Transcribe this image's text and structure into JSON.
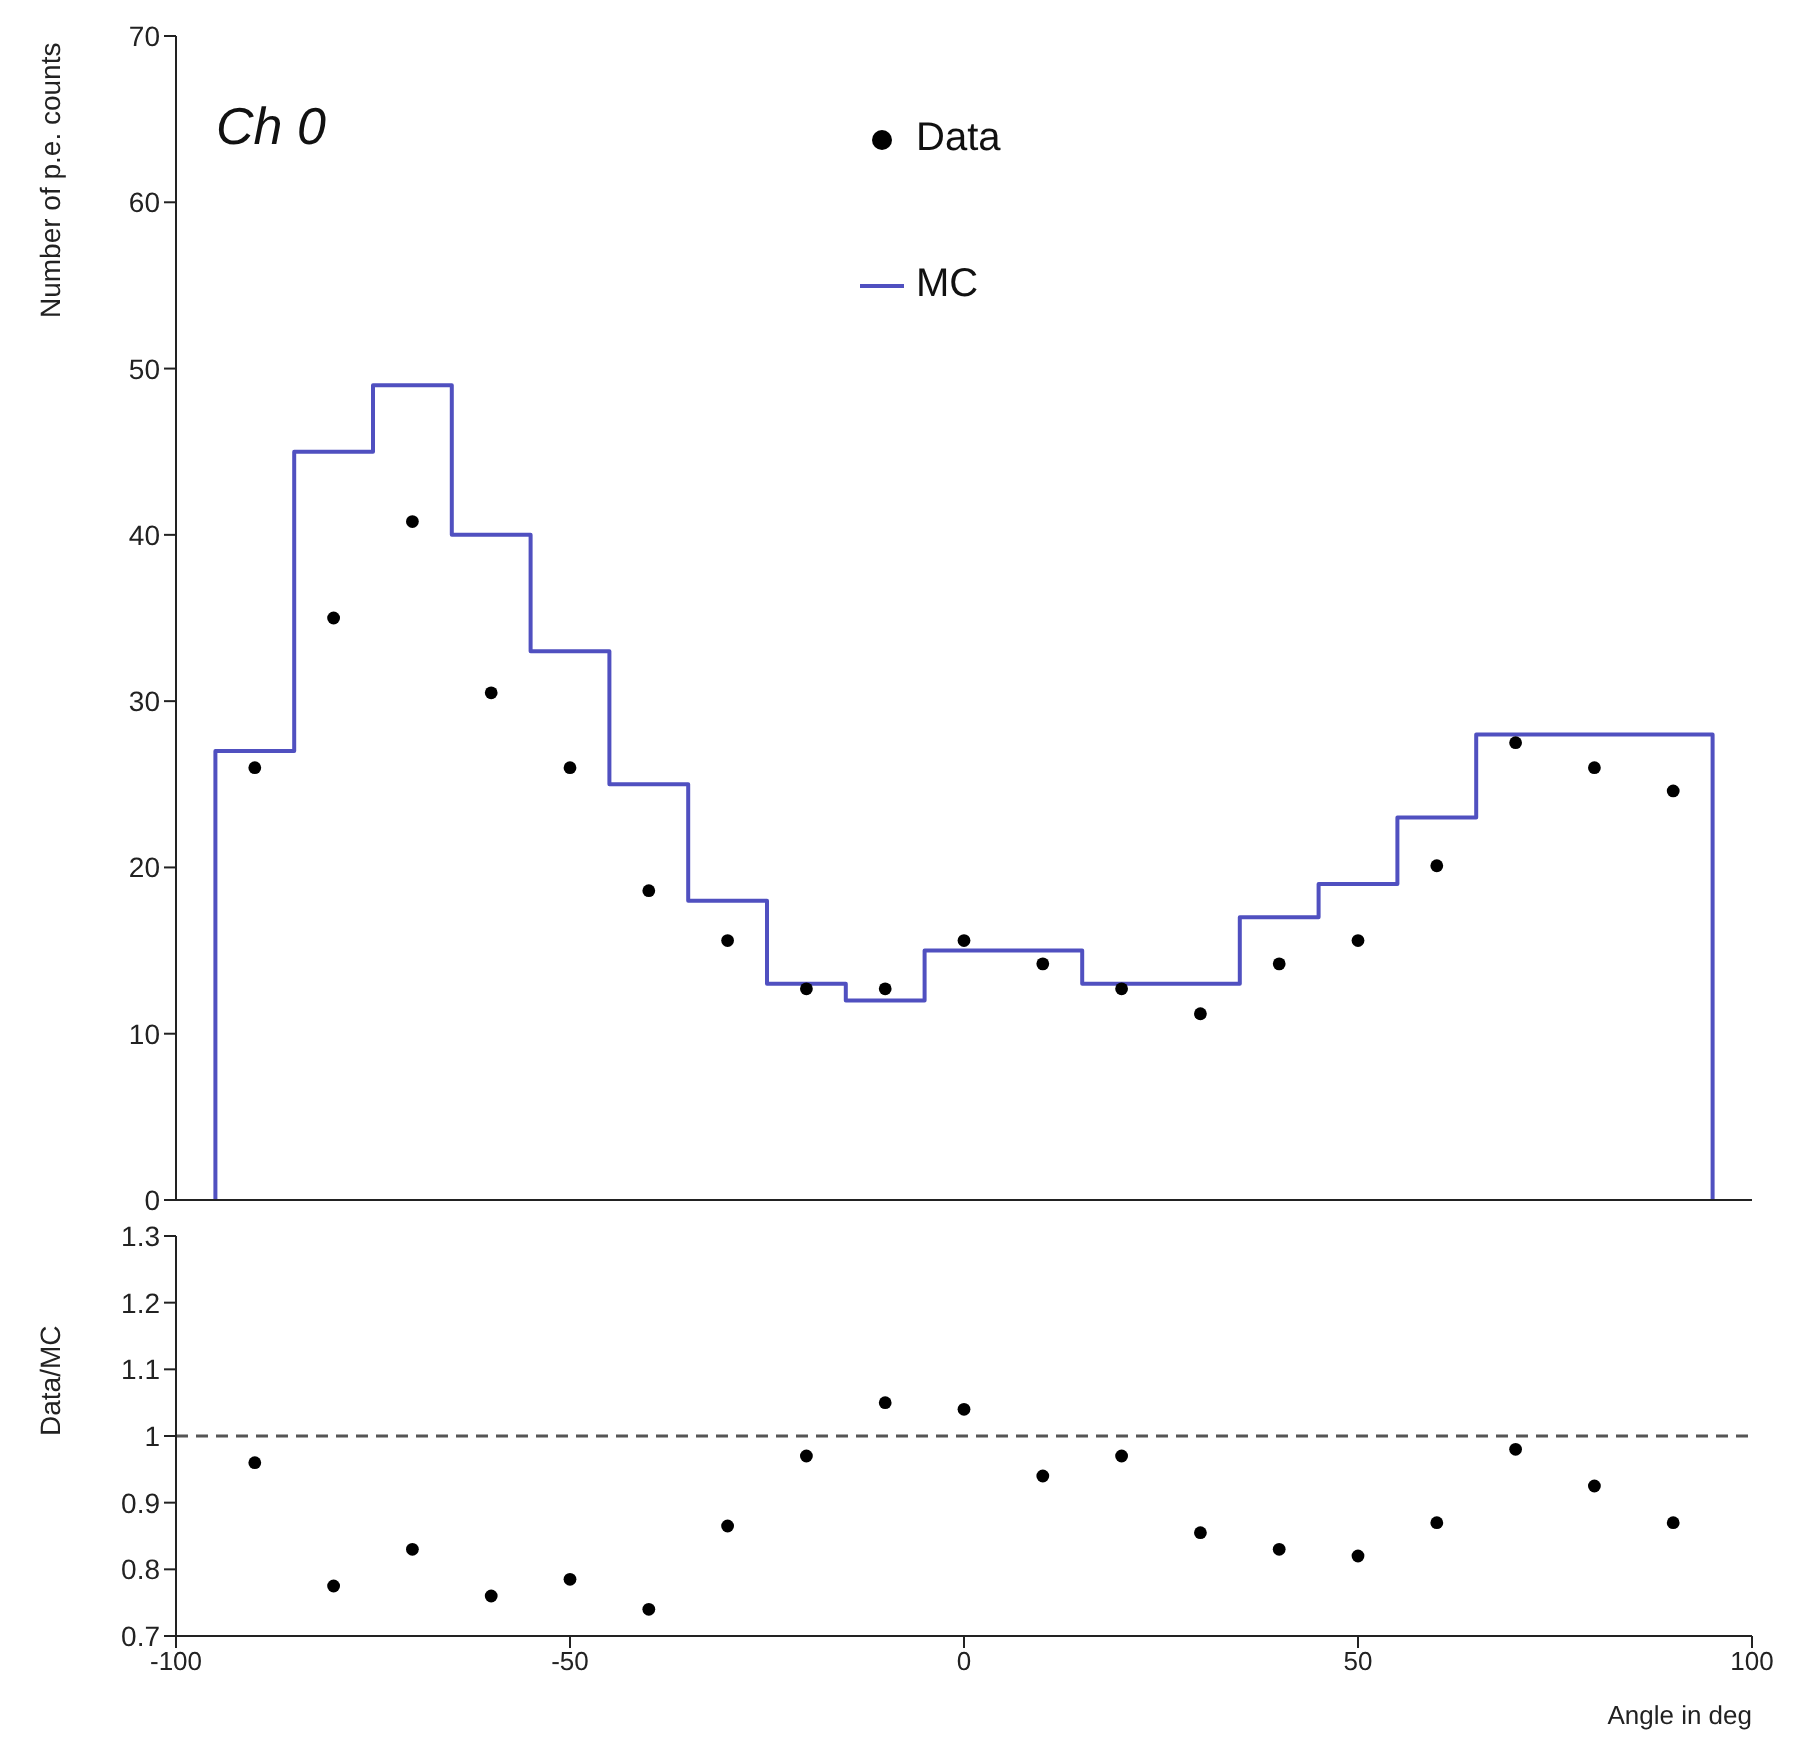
{
  "chart_data": [
    {
      "type": "scatter",
      "ylabel": "Number of p.e. counts",
      "annotations": [
        "Ch 0"
      ],
      "xlim": [
        -100,
        100
      ],
      "ylim": [
        0,
        70
      ],
      "yticks": [
        0,
        10,
        20,
        30,
        40,
        50,
        60,
        70
      ],
      "tick_labels": "y",
      "legend": "top",
      "marker": "circle",
      "series": [
        {
          "name": "Data",
          "color": "#000000",
          "x": [
            -90,
            -80,
            -70,
            -60,
            -50,
            -40,
            -30,
            -20,
            -10,
            0,
            10,
            20,
            30,
            40,
            50,
            60,
            70,
            80,
            90
          ],
          "values": [
            26,
            35,
            40.8,
            30.5,
            26,
            18.6,
            15.6,
            12.7,
            12.7,
            15.6,
            14.2,
            12.7,
            11.2,
            14.2,
            15.6,
            20.1,
            27.5,
            26,
            24.6
          ]
        },
        {
          "name": "MC",
          "type": "histogram",
          "color": "#5050c0",
          "bins": [
            -95,
            -85,
            -75,
            -65,
            -55,
            -45,
            -35,
            -25,
            -15,
            -5,
            5,
            15,
            25,
            35,
            45,
            55,
            65,
            75,
            85,
            95
          ],
          "values": [
            27,
            45,
            49,
            40,
            33,
            25,
            18,
            13,
            12,
            15,
            15,
            13,
            13,
            17,
            19,
            23,
            28,
            28,
            28
          ]
        }
      ]
    },
    {
      "type": "scatter",
      "ylabel": "Data/MC",
      "xlabel": "Angle in deg",
      "xlim": [
        -100,
        100
      ],
      "xticks": [
        -100,
        -50,
        0,
        50,
        100
      ],
      "ylim": [
        0.7,
        1.3
      ],
      "yticks": [
        0.7,
        0.8,
        0.9,
        1,
        1.1,
        1.2,
        1.3
      ],
      "marker": "circle",
      "ref_lines": [
        {
          "axis": "y",
          "value": 1,
          "line_style": "dashed",
          "color": "#555555"
        }
      ],
      "series": [
        {
          "color": "#000000",
          "x": [
            -90,
            -80,
            -70,
            -60,
            -50,
            -40,
            -30,
            -20,
            -10,
            0,
            10,
            20,
            30,
            40,
            50,
            60,
            70,
            80,
            90
          ],
          "values": [
            0.96,
            0.775,
            0.83,
            0.76,
            0.785,
            0.74,
            0.865,
            0.97,
            1.05,
            1.04,
            0.94,
            0.97,
            0.855,
            0.83,
            0.82,
            0.87,
            0.98,
            0.925,
            0.87
          ]
        }
      ]
    }
  ]
}
